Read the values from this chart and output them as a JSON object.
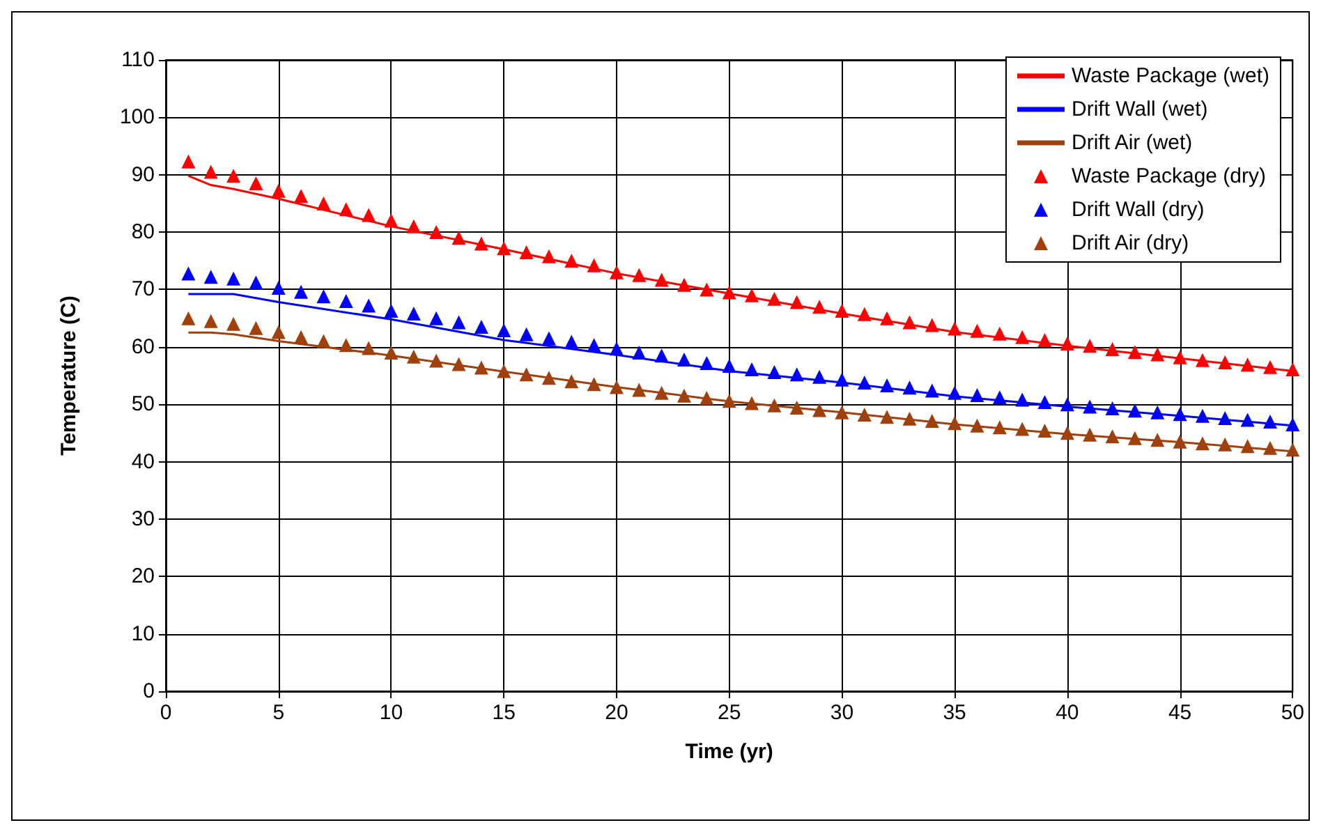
{
  "chart_data": {
    "type": "line",
    "xlabel": "Time (yr)",
    "ylabel": "Temperature (C)",
    "xlim": [
      0,
      50
    ],
    "xticks": [
      0,
      5,
      10,
      15,
      20,
      25,
      30,
      35,
      40,
      45,
      50
    ],
    "ylim": [
      0,
      110
    ],
    "yticks": [
      0,
      10,
      20,
      30,
      40,
      50,
      60,
      70,
      80,
      90,
      100,
      110
    ],
    "grid": true,
    "legend": "top right",
    "series": [
      {
        "name": "Waste Package (wet)",
        "color": "#ff0000",
        "type": "line",
        "marker": "none",
        "x": [
          1,
          2,
          3,
          5,
          10,
          15,
          20,
          25,
          30,
          35,
          40,
          45,
          50
        ],
        "values": [
          89.8,
          88.2,
          87.5,
          85.8,
          81,
          77,
          72.8,
          69.3,
          65.8,
          62.6,
          60.2,
          58,
          55.8
        ]
      },
      {
        "name": "Drift Wall (wet)",
        "color": "#0000ff",
        "type": "line",
        "marker": "none",
        "x": [
          1,
          3,
          5,
          10,
          15,
          20,
          25,
          30,
          35,
          40,
          45,
          50
        ],
        "values": [
          69.2,
          69.2,
          67.8,
          64.8,
          61.2,
          58.6,
          55.8,
          53.8,
          51.4,
          49.6,
          48,
          46.3
        ]
      },
      {
        "name": "Drift Air (wet)",
        "color": "#a0410d",
        "type": "line",
        "marker": "none",
        "x": [
          1,
          2,
          3,
          5,
          10,
          15,
          20,
          25,
          30,
          35,
          40,
          45,
          50
        ],
        "values": [
          62.5,
          62.5,
          62.2,
          61,
          58.5,
          55.7,
          53,
          50.5,
          48.6,
          46.5,
          44.8,
          43.4,
          41.8
        ]
      },
      {
        "name": "Waste Package (dry)",
        "color": "#ff0000",
        "type": "scatter",
        "marker": "triangle",
        "x": [
          1,
          2,
          3,
          4,
          5,
          6,
          7,
          8,
          9,
          10,
          11,
          12,
          13,
          14,
          15,
          16,
          17,
          18,
          19,
          20,
          21,
          22,
          23,
          24,
          25,
          26,
          27,
          28,
          29,
          30,
          31,
          32,
          33,
          34,
          35,
          36,
          37,
          38,
          39,
          40,
          41,
          42,
          43,
          44,
          45,
          46,
          47,
          48,
          49,
          50
        ],
        "values": [
          92.3,
          90.5,
          89.8,
          88.5,
          87.2,
          86.3,
          85,
          84,
          83,
          82,
          81,
          80,
          79,
          78,
          77.2,
          76.5,
          75.8,
          75,
          74.2,
          73,
          72.5,
          71.7,
          70.8,
          70,
          69.5,
          69,
          68.4,
          67.8,
          67,
          66.3,
          65.7,
          65,
          64.3,
          63.8,
          63.2,
          62.8,
          62.3,
          61.7,
          61.2,
          60.6,
          60.2,
          59.6,
          59.1,
          58.7,
          58.2,
          57.7,
          57.3,
          56.9,
          56.5,
          56.1
        ]
      },
      {
        "name": "Drift Wall (dry)",
        "color": "#0000ff",
        "type": "scatter",
        "marker": "triangle",
        "x": [
          1,
          2,
          3,
          4,
          5,
          6,
          7,
          8,
          9,
          10,
          11,
          12,
          13,
          14,
          15,
          16,
          17,
          18,
          19,
          20,
          21,
          22,
          23,
          24,
          25,
          26,
          27,
          28,
          29,
          30,
          31,
          32,
          33,
          34,
          35,
          36,
          37,
          38,
          39,
          40,
          41,
          42,
          43,
          44,
          45,
          46,
          47,
          48,
          49,
          50
        ],
        "values": [
          72.8,
          72.2,
          71.9,
          71.2,
          70.3,
          69.6,
          68.8,
          68,
          67.2,
          66.3,
          65.8,
          65,
          64.3,
          63.5,
          62.9,
          62.2,
          61.5,
          60.9,
          60.3,
          59.7,
          59,
          58.5,
          57.8,
          57.2,
          56.7,
          56.1,
          55.6,
          55.2,
          54.8,
          54.3,
          53.8,
          53.3,
          52.9,
          52.4,
          52,
          51.6,
          51.2,
          50.8,
          50.4,
          50,
          49.6,
          49.3,
          48.9,
          48.6,
          48.3,
          48,
          47.6,
          47.3,
          47,
          46.5
        ]
      },
      {
        "name": "Drift Air (dry)",
        "color": "#a0410d",
        "type": "scatter",
        "marker": "triangle",
        "x": [
          1,
          2,
          3,
          4,
          5,
          6,
          7,
          8,
          9,
          10,
          11,
          12,
          13,
          14,
          15,
          16,
          17,
          18,
          19,
          20,
          21,
          22,
          23,
          24,
          25,
          26,
          27,
          28,
          29,
          30,
          31,
          32,
          33,
          34,
          35,
          36,
          37,
          38,
          39,
          40,
          41,
          42,
          43,
          44,
          45,
          46,
          47,
          48,
          49,
          50
        ],
        "values": [
          65,
          64.5,
          64,
          63.3,
          62.6,
          61.7,
          61,
          60.3,
          59.8,
          59,
          58.3,
          57.6,
          57,
          56.4,
          55.8,
          55.2,
          54.6,
          54,
          53.5,
          53,
          52.5,
          52,
          51.5,
          51.1,
          50.6,
          50.2,
          49.8,
          49.4,
          49,
          48.6,
          48.2,
          47.8,
          47.5,
          47.1,
          46.7,
          46.3,
          46,
          45.7,
          45.4,
          45,
          44.7,
          44.4,
          44.1,
          43.8,
          43.5,
          43.2,
          43,
          42.7,
          42.4,
          42.1
        ]
      }
    ]
  }
}
